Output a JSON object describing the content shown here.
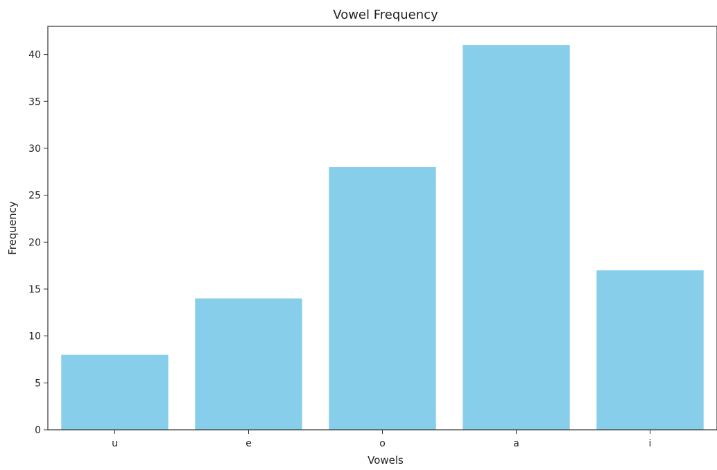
{
  "chart_data": {
    "type": "bar",
    "title": "Vowel Frequency",
    "xlabel": "Vowels",
    "ylabel": "Frequency",
    "categories": [
      "u",
      "e",
      "o",
      "a",
      "i"
    ],
    "values": [
      8,
      14,
      28,
      41,
      17
    ],
    "ylim": [
      0,
      43
    ],
    "yticks": [
      0,
      5,
      10,
      15,
      20,
      25,
      30,
      35,
      40
    ],
    "ytick_labels": [
      "0",
      "5",
      "10",
      "15",
      "20",
      "25",
      "30",
      "35",
      "40"
    ],
    "grid": false,
    "bar_color": "#87CEEB",
    "axis_color": "#333333"
  }
}
